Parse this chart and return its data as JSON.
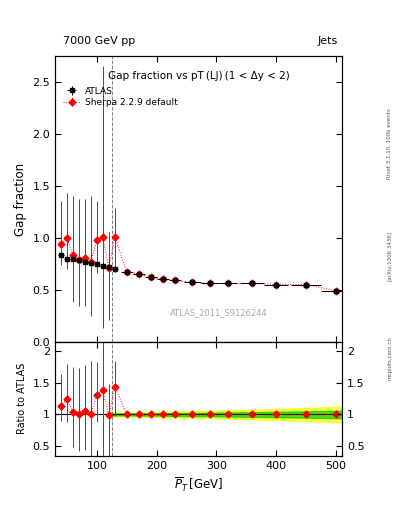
{
  "title_top_left": "7000 GeV pp",
  "title_top_right": "Jets",
  "plot_title": "Gap fraction vs pT (LJ) (1 < Δy < 2)",
  "xlabel": "$\\overline{P}_T$ [GeV]",
  "ylabel_main": "Gap fraction",
  "ylabel_ratio": "Ratio to ATLAS",
  "watermark": "ATLAS_2011_S9126244",
  "rivet_label": "Rivet 3.1.10, 100k events",
  "arxiv_label": "[arXiv:1306.3436]",
  "mcplots_label": "mcplots.cern.ch",
  "xlim": [
    30,
    510
  ],
  "ylim_main": [
    0.0,
    2.75
  ],
  "ylim_ratio": [
    0.35,
    2.15
  ],
  "atlas_x": [
    40,
    50,
    60,
    70,
    80,
    90,
    100,
    110,
    120,
    130,
    150,
    170,
    190,
    210,
    230,
    260,
    290,
    320,
    360,
    400,
    450,
    500
  ],
  "atlas_y": [
    0.83,
    0.8,
    0.8,
    0.79,
    0.77,
    0.76,
    0.75,
    0.73,
    0.72,
    0.7,
    0.67,
    0.65,
    0.62,
    0.6,
    0.59,
    0.57,
    0.56,
    0.56,
    0.56,
    0.55,
    0.55,
    0.49
  ],
  "atlas_xerr_lo": [
    5,
    5,
    5,
    5,
    5,
    5,
    5,
    5,
    5,
    5,
    10,
    10,
    10,
    10,
    10,
    15,
    15,
    15,
    20,
    20,
    25,
    25
  ],
  "atlas_xerr_hi": [
    5,
    5,
    5,
    5,
    5,
    5,
    5,
    5,
    5,
    5,
    10,
    10,
    10,
    10,
    10,
    15,
    15,
    15,
    20,
    20,
    25,
    25
  ],
  "atlas_yerr_lo": [
    0.025,
    0.025,
    0.025,
    0.025,
    0.025,
    0.025,
    0.025,
    0.025,
    0.025,
    0.025,
    0.015,
    0.015,
    0.015,
    0.015,
    0.015,
    0.015,
    0.015,
    0.015,
    0.015,
    0.015,
    0.015,
    0.015
  ],
  "atlas_yerr_hi": [
    0.025,
    0.025,
    0.025,
    0.025,
    0.025,
    0.025,
    0.025,
    0.025,
    0.025,
    0.025,
    0.015,
    0.015,
    0.015,
    0.015,
    0.015,
    0.015,
    0.015,
    0.015,
    0.015,
    0.015,
    0.015,
    0.015
  ],
  "sherpa_x": [
    40,
    50,
    60,
    70,
    80,
    90,
    100,
    110,
    120,
    130,
    150,
    170,
    190,
    210,
    230,
    260,
    290,
    320,
    360,
    400,
    450,
    500
  ],
  "sherpa_y": [
    0.94,
    1.0,
    0.83,
    0.79,
    0.81,
    0.77,
    0.98,
    1.01,
    0.71,
    1.01,
    0.67,
    0.65,
    0.62,
    0.6,
    0.59,
    0.57,
    0.56,
    0.56,
    0.56,
    0.55,
    0.55,
    0.49
  ],
  "sherpa_yerr_lo": [
    0.2,
    0.3,
    0.45,
    0.45,
    0.47,
    0.52,
    0.32,
    0.88,
    0.5,
    0.32,
    0.015,
    0.015,
    0.015,
    0.015,
    0.015,
    0.015,
    0.015,
    0.015,
    0.015,
    0.015,
    0.015,
    0.015
  ],
  "sherpa_yerr_hi": [
    0.42,
    0.43,
    0.57,
    0.58,
    0.56,
    0.63,
    0.38,
    1.65,
    0.35,
    0.28,
    0.015,
    0.015,
    0.015,
    0.015,
    0.015,
    0.015,
    0.015,
    0.015,
    0.015,
    0.015,
    0.015,
    0.015
  ],
  "vline_x": 125,
  "ratio_sherpa_y": [
    1.13,
    1.25,
    1.04,
    1.0,
    1.05,
    1.01,
    1.31,
    1.38,
    0.99,
    1.44,
    1.0,
    1.0,
    1.0,
    1.0,
    1.0,
    1.0,
    1.0,
    1.0,
    1.0,
    1.0,
    1.0,
    1.0
  ],
  "ratio_sherpa_yerr_lo": [
    0.24,
    0.375,
    0.56,
    0.57,
    0.61,
    0.68,
    0.43,
    1.21,
    0.69,
    0.46,
    0.02,
    0.02,
    0.02,
    0.02,
    0.02,
    0.02,
    0.02,
    0.02,
    0.02,
    0.02,
    0.02,
    0.02
  ],
  "ratio_sherpa_yerr_hi": [
    0.51,
    0.54,
    0.71,
    0.73,
    0.73,
    0.83,
    0.51,
    2.25,
    0.49,
    0.4,
    0.02,
    0.02,
    0.02,
    0.02,
    0.02,
    0.02,
    0.02,
    0.02,
    0.02,
    0.02,
    0.02,
    0.02
  ],
  "band_x": [
    125,
    150,
    170,
    190,
    210,
    230,
    260,
    290,
    320,
    360,
    400,
    450,
    510
  ],
  "band_green_lo": [
    0.985,
    0.985,
    0.983,
    0.982,
    0.98,
    0.978,
    0.975,
    0.972,
    0.968,
    0.963,
    0.957,
    0.95,
    0.94
  ],
  "band_green_hi": [
    1.015,
    1.015,
    1.017,
    1.018,
    1.02,
    1.022,
    1.025,
    1.028,
    1.032,
    1.037,
    1.043,
    1.05,
    1.06
  ],
  "band_yellow_lo": [
    0.97,
    0.968,
    0.965,
    0.962,
    0.958,
    0.954,
    0.948,
    0.942,
    0.934,
    0.924,
    0.912,
    0.895,
    0.875
  ],
  "band_yellow_hi": [
    1.03,
    1.032,
    1.035,
    1.038,
    1.042,
    1.046,
    1.052,
    1.058,
    1.066,
    1.076,
    1.088,
    1.105,
    1.125
  ]
}
